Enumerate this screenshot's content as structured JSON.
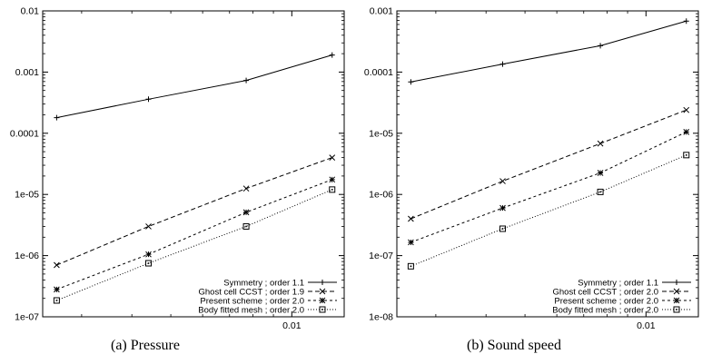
{
  "chart_data": [
    {
      "type": "line",
      "caption": "(a)  Pressure",
      "xscale": "log",
      "yscale": "log",
      "xlim": [
        0.0024,
        0.0135
      ],
      "ylim": [
        1e-07,
        0.01
      ],
      "xticks": [
        0.01
      ],
      "xtick_labels": [
        "0.01"
      ],
      "yticks": [
        1e-07,
        1e-06,
        1e-05,
        0.0001,
        0.001,
        0.01
      ],
      "ytick_labels": [
        "1e-07",
        "1e-06",
        "1e-05",
        "0.0001",
        "0.001",
        "0.01"
      ],
      "legend_position": "bottom-right",
      "x": [
        0.0026,
        0.0044,
        0.0077,
        0.0126
      ],
      "series": [
        {
          "name": "Symmetry ; order 1.1",
          "marker": "plus",
          "dash": "solid",
          "values": [
            0.00018,
            0.00036,
            0.00073,
            0.0019
          ]
        },
        {
          "name": "Ghost cell CCST ; order 1.9",
          "marker": "x",
          "dash": "dashed",
          "values": [
            7e-07,
            3e-06,
            1.25e-05,
            4e-05
          ]
        },
        {
          "name": "Present scheme ; order 2.0",
          "marker": "star",
          "dash": "short-dashed",
          "values": [
            2.8e-07,
            1.05e-06,
            5.1e-06,
            1.75e-05
          ]
        },
        {
          "name": "Body fitted mesh ; order 2.0",
          "marker": "square",
          "dash": "dotted",
          "values": [
            1.85e-07,
            7.5e-07,
            3e-06,
            1.2e-05
          ]
        }
      ]
    },
    {
      "type": "line",
      "caption": "(b)  Sound speed",
      "xscale": "log",
      "yscale": "log",
      "xlim": [
        0.0024,
        0.0135
      ],
      "ylim": [
        1e-08,
        0.001
      ],
      "xticks": [
        0.01
      ],
      "xtick_labels": [
        "0.01"
      ],
      "yticks": [
        1e-08,
        1e-07,
        1e-06,
        1e-05,
        0.0001,
        0.001
      ],
      "ytick_labels": [
        "1e-08",
        "1e-07",
        "1e-06",
        "1e-05",
        "0.0001",
        "0.001"
      ],
      "legend_position": "bottom-right",
      "x": [
        0.0026,
        0.0044,
        0.0077,
        0.0126
      ],
      "series": [
        {
          "name": "Symmetry ; order 1.1",
          "marker": "plus",
          "dash": "solid",
          "values": [
            6.9e-05,
            0.000135,
            0.00027,
            0.00068
          ]
        },
        {
          "name": "Ghost cell CCST ; order 2.0",
          "marker": "x",
          "dash": "dashed",
          "values": [
            4e-07,
            1.65e-06,
            6.8e-06,
            2.4e-05
          ]
        },
        {
          "name": "Present scheme ; order 2.0",
          "marker": "star",
          "dash": "short-dashed",
          "values": [
            1.65e-07,
            6e-07,
            2.25e-06,
            1.05e-05
          ]
        },
        {
          "name": "Body fitted mesh ; order 2.0",
          "marker": "square",
          "dash": "dotted",
          "values": [
            6.7e-08,
            2.75e-07,
            1.1e-06,
            4.4e-06
          ]
        }
      ]
    }
  ]
}
